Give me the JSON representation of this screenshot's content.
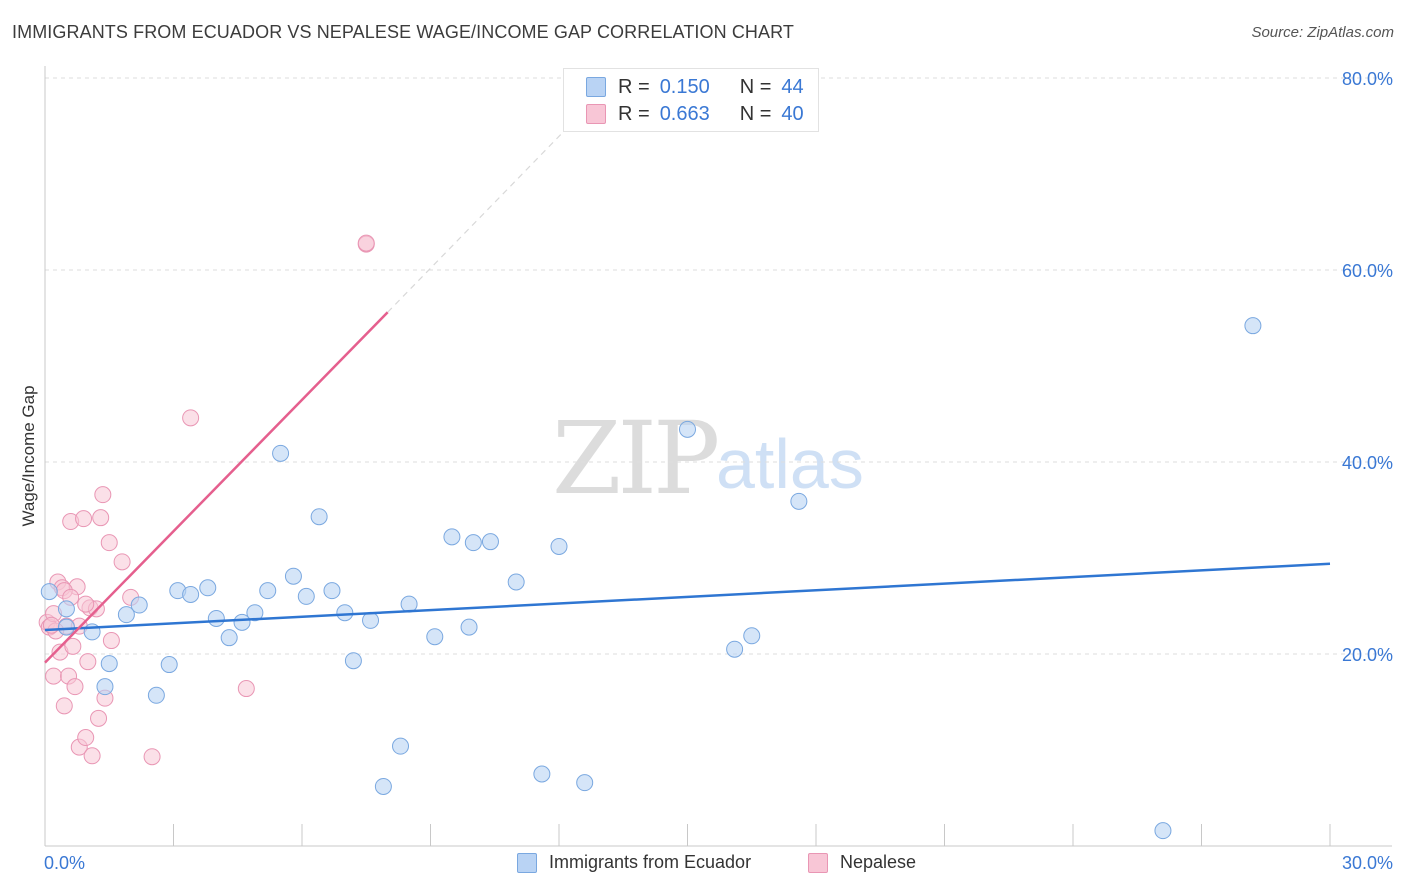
{
  "title": "IMMIGRANTS FROM ECUADOR VS NEPALESE WAGE/INCOME GAP CORRELATION CHART",
  "source": "Source: ZipAtlas.com",
  "watermark": {
    "zip": "ZIP",
    "atlas": "atlas"
  },
  "legend_top": {
    "r_label": "R =",
    "n_label": "N =",
    "rows": [
      {
        "r": "0.150",
        "n": "44"
      },
      {
        "r": "0.663",
        "n": "40"
      }
    ]
  },
  "colors": {
    "blue_fill": "#b9d3f4",
    "blue_stroke": "#7aa8e0",
    "blue_line": "#2f76d2",
    "pink_fill": "#f8c6d6",
    "pink_stroke": "#e996b4",
    "pink_line": "#e55f8e",
    "value_text": "#3a78d4"
  },
  "chart_data": {
    "type": "scatter",
    "title": "IMMIGRANTS FROM ECUADOR VS NEPALESE WAGE/INCOME GAP CORRELATION CHART",
    "xlabel": "",
    "ylabel": "Wage/Income Gap",
    "xlim": [
      0,
      30
    ],
    "ylim": [
      0,
      80
    ],
    "x_tick_labels": [
      "0.0%",
      "30.0%"
    ],
    "y_tick_labels": [
      "20.0%",
      "40.0%",
      "60.0%",
      "80.0%"
    ],
    "y_ticks": [
      20,
      40,
      60,
      80
    ],
    "series": [
      {
        "name": "Immigrants from Ecuador",
        "r": 0.15,
        "n": 44,
        "trend": {
          "x": [
            0,
            30
          ],
          "y": [
            22.5,
            29.4
          ]
        },
        "points": [
          [
            0.1,
            26.5
          ],
          [
            0.5,
            24.7
          ],
          [
            0.5,
            22.8
          ],
          [
            1.1,
            22.3
          ],
          [
            1.5,
            19.0
          ],
          [
            1.4,
            16.6
          ],
          [
            1.9,
            24.1
          ],
          [
            2.2,
            25.1
          ],
          [
            2.6,
            15.7
          ],
          [
            2.9,
            18.9
          ],
          [
            3.1,
            26.6
          ],
          [
            3.4,
            26.2
          ],
          [
            3.8,
            26.9
          ],
          [
            4.0,
            23.7
          ],
          [
            4.3,
            21.7
          ],
          [
            4.6,
            23.3
          ],
          [
            4.9,
            24.3
          ],
          [
            5.2,
            26.6
          ],
          [
            5.5,
            40.9
          ],
          [
            5.8,
            28.1
          ],
          [
            6.1,
            26.0
          ],
          [
            6.4,
            34.3
          ],
          [
            6.7,
            26.6
          ],
          [
            7.0,
            24.3
          ],
          [
            7.2,
            19.3
          ],
          [
            7.6,
            23.5
          ],
          [
            7.9,
            6.2
          ],
          [
            8.3,
            10.4
          ],
          [
            8.5,
            25.2
          ],
          [
            9.1,
            21.8
          ],
          [
            9.5,
            32.2
          ],
          [
            9.9,
            22.8
          ],
          [
            10.0,
            31.6
          ],
          [
            10.4,
            31.7
          ],
          [
            11.0,
            27.5
          ],
          [
            11.6,
            7.5
          ],
          [
            12.0,
            31.2
          ],
          [
            12.6,
            6.6
          ],
          [
            15.0,
            43.4
          ],
          [
            16.1,
            20.5
          ],
          [
            16.5,
            21.9
          ],
          [
            17.6,
            35.9
          ],
          [
            26.1,
            1.6
          ],
          [
            28.2,
            54.2
          ]
        ]
      },
      {
        "name": "Nepalese",
        "r": 0.663,
        "n": 40,
        "trend": {
          "x": [
            0,
            8
          ],
          "y": [
            19.1,
            55.6
          ]
        },
        "trend_dashed": {
          "x": [
            8,
            12.3
          ],
          "y": [
            55.6,
            75.3
          ]
        },
        "points": [
          [
            0.05,
            23.3
          ],
          [
            0.1,
            22.8
          ],
          [
            0.2,
            24.2
          ],
          [
            0.2,
            17.7
          ],
          [
            0.3,
            27.5
          ],
          [
            0.35,
            20.2
          ],
          [
            0.4,
            26.9
          ],
          [
            0.45,
            14.6
          ],
          [
            0.5,
            22.9
          ],
          [
            0.55,
            17.7
          ],
          [
            0.6,
            33.8
          ],
          [
            0.65,
            20.8
          ],
          [
            0.7,
            16.6
          ],
          [
            0.75,
            27.0
          ],
          [
            0.8,
            10.3
          ],
          [
            0.9,
            34.1
          ],
          [
            0.95,
            11.3
          ],
          [
            1.0,
            19.2
          ],
          [
            1.05,
            24.8
          ],
          [
            1.1,
            9.4
          ],
          [
            1.2,
            24.7
          ],
          [
            1.25,
            13.3
          ],
          [
            1.3,
            34.2
          ],
          [
            1.35,
            36.6
          ],
          [
            1.4,
            15.4
          ],
          [
            1.5,
            31.6
          ],
          [
            1.55,
            21.4
          ],
          [
            1.8,
            29.6
          ],
          [
            2.0,
            25.9
          ],
          [
            2.5,
            9.3
          ],
          [
            3.4,
            44.6
          ],
          [
            4.7,
            16.4
          ],
          [
            7.5,
            62.7
          ],
          [
            7.5,
            62.8
          ],
          [
            0.25,
            22.4
          ],
          [
            0.45,
            26.6
          ],
          [
            0.6,
            25.9
          ],
          [
            0.8,
            22.9
          ],
          [
            0.95,
            25.2
          ],
          [
            0.15,
            23.0
          ]
        ]
      }
    ]
  },
  "bottom_legend": [
    {
      "label": "Immigrants from Ecuador"
    },
    {
      "label": "Nepalese"
    }
  ]
}
